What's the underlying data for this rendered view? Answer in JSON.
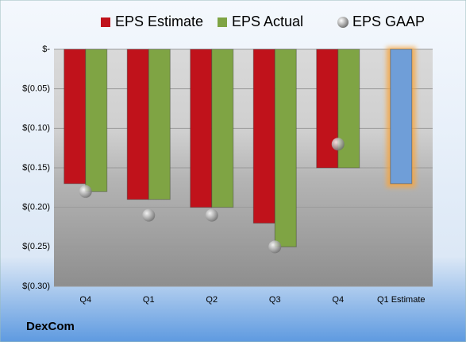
{
  "chart_data": {
    "type": "bar",
    "footer": "DexCom",
    "categories": [
      "Q4",
      "Q1",
      "Q2",
      "Q3",
      "Q4",
      "Q1 Estimate"
    ],
    "series": [
      {
        "name": "EPS Estimate",
        "color": "#c0121b",
        "values": [
          -0.17,
          -0.19,
          -0.2,
          -0.22,
          -0.15,
          -0.17
        ],
        "point_colors": [
          "#c0121b",
          "#c0121b",
          "#c0121b",
          "#c0121b",
          "#c0121b",
          "#6f9ed8"
        ]
      },
      {
        "name": "EPS Actual",
        "color": "#7fa444",
        "values": [
          -0.18,
          -0.19,
          -0.2,
          -0.25,
          -0.15,
          null
        ]
      },
      {
        "name": "EPS GAAP",
        "color": "#a8a8a8",
        "marker": "circle",
        "values": [
          -0.18,
          -0.21,
          -0.21,
          -0.25,
          -0.12,
          null
        ]
      }
    ],
    "ylim": [
      -0.3,
      0
    ],
    "yticks": [
      {
        "value": 0,
        "label": "$-"
      },
      {
        "value": -0.05,
        "label": "$(0.05)"
      },
      {
        "value": -0.1,
        "label": "$(0.10)"
      },
      {
        "value": -0.15,
        "label": "$(0.15)"
      },
      {
        "value": -0.2,
        "label": "$(0.20)"
      },
      {
        "value": -0.25,
        "label": "$(0.25)"
      },
      {
        "value": -0.3,
        "label": "$(0.30)"
      }
    ],
    "grid": true
  }
}
